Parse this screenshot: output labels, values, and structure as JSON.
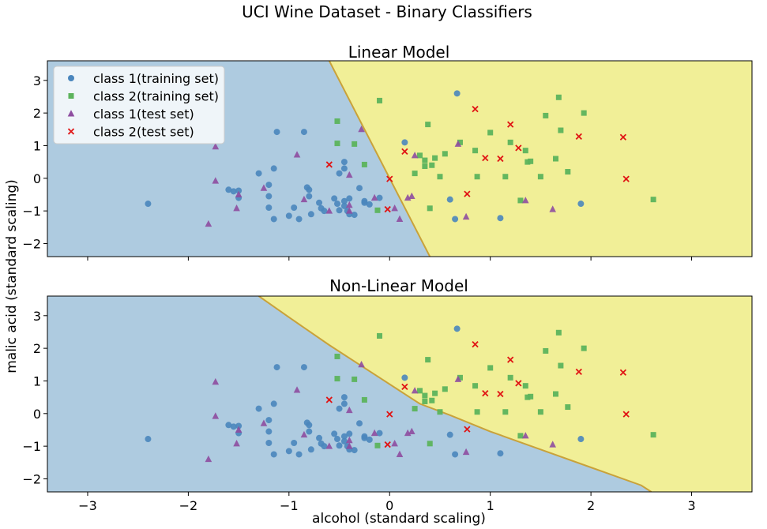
{
  "suptitle": "UCI Wine Dataset - Binary Classifiers",
  "xlabel": "alcohol (standard scaling)",
  "ylabel": "malic acid (standard scaling)",
  "colors": {
    "region_class1": "#aecbe0",
    "region_class2": "#f1ef97",
    "boundary": "#c9a23a",
    "class1_train": "#4a86bd",
    "class2_train": "#5cb35c",
    "class1_test": "#8e4da0",
    "class2_test": "#e01414"
  },
  "legend": [
    {
      "label": "class 1(training set)",
      "marker": "circle",
      "color": "#4a86bd"
    },
    {
      "label": "class 2(training set)",
      "marker": "square",
      "color": "#5cb35c"
    },
    {
      "label": "class 1(test set)",
      "marker": "triangle",
      "color": "#8e4da0"
    },
    {
      "label": "class 2(test set)",
      "marker": "x",
      "color": "#e01414"
    }
  ],
  "chart_data": [
    {
      "type": "scatter",
      "title": "Linear Model",
      "xlim": [
        -3.4,
        3.6
      ],
      "ylim": [
        -2.4,
        3.6
      ],
      "xticks": [
        -3,
        -2,
        -1,
        0,
        1,
        2,
        3
      ],
      "yticks": [
        -2,
        -1,
        0,
        1,
        2,
        3
      ],
      "xticklabels": [
        "−3",
        "−2",
        "−1",
        "0",
        "1",
        "2",
        "3"
      ],
      "yticklabels": [
        "−2",
        "−1",
        "0",
        "1",
        "2",
        "3"
      ],
      "show_xticklabels": false,
      "legend_position": "upper-left",
      "decision_boundary": [
        [
          -0.6,
          3.6
        ],
        [
          0.4,
          -2.4
        ]
      ]
    },
    {
      "type": "scatter",
      "title": "Non-Linear Model",
      "xlim": [
        -3.4,
        3.6
      ],
      "ylim": [
        -2.4,
        3.6
      ],
      "xticks": [
        -3,
        -2,
        -1,
        0,
        1,
        2,
        3
      ],
      "yticks": [
        -2,
        -1,
        0,
        1,
        2,
        3
      ],
      "xticklabels": [
        "−3",
        "−2",
        "−1",
        "0",
        "1",
        "2",
        "3"
      ],
      "yticklabels": [
        "−2",
        "−1",
        "0",
        "1",
        "2",
        "3"
      ],
      "show_xticklabels": true,
      "decision_boundary": [
        [
          -1.3,
          3.6
        ],
        [
          -1.0,
          2.95
        ],
        [
          -0.6,
          2.1
        ],
        [
          -0.3,
          1.5
        ],
        [
          -0.1,
          1.1
        ],
        [
          0.1,
          0.7
        ],
        [
          0.3,
          0.3
        ],
        [
          0.6,
          -0.05
        ],
        [
          1.0,
          -0.55
        ],
        [
          1.5,
          -1.1
        ],
        [
          2.0,
          -1.65
        ],
        [
          2.5,
          -2.2
        ],
        [
          2.6,
          -2.4
        ]
      ]
    }
  ],
  "series": {
    "class1_train": [
      [
        -2.4,
        -0.78
      ],
      [
        -1.6,
        -0.35
      ],
      [
        -1.55,
        -0.4
      ],
      [
        -1.5,
        -0.38
      ],
      [
        -1.5,
        -0.6
      ],
      [
        -1.3,
        0.15
      ],
      [
        -1.2,
        -0.2
      ],
      [
        -1.2,
        -0.55
      ],
      [
        -1.2,
        -0.9
      ],
      [
        -1.15,
        0.3
      ],
      [
        -1.15,
        -1.25
      ],
      [
        -1.12,
        1.42
      ],
      [
        -1.0,
        -1.15
      ],
      [
        -0.95,
        -0.9
      ],
      [
        -0.9,
        -1.25
      ],
      [
        -0.85,
        1.42
      ],
      [
        -0.82,
        -0.28
      ],
      [
        -0.8,
        -0.35
      ],
      [
        -0.8,
        -0.55
      ],
      [
        -0.78,
        -1.1
      ],
      [
        -0.7,
        -0.75
      ],
      [
        -0.68,
        -0.92
      ],
      [
        -0.65,
        -1.0
      ],
      [
        -0.55,
        -0.62
      ],
      [
        -0.52,
        -0.78
      ],
      [
        -0.5,
        0.15
      ],
      [
        -0.5,
        -0.98
      ],
      [
        -0.45,
        0.5
      ],
      [
        -0.45,
        0.3
      ],
      [
        -0.45,
        -0.7
      ],
      [
        -0.45,
        -0.85
      ],
      [
        -0.42,
        -1.0
      ],
      [
        -0.4,
        -0.62
      ],
      [
        -0.4,
        -1.1
      ],
      [
        -0.35,
        -1.12
      ],
      [
        -0.3,
        -0.3
      ],
      [
        -0.25,
        -0.7
      ],
      [
        -0.25,
        -0.75
      ],
      [
        -0.2,
        -0.8
      ],
      [
        -0.1,
        -0.6
      ],
      [
        0.15,
        1.1
      ],
      [
        0.6,
        -0.65
      ],
      [
        0.65,
        -1.25
      ],
      [
        0.67,
        2.6
      ],
      [
        1.1,
        -1.22
      ],
      [
        1.9,
        -0.78
      ]
    ],
    "class2_train": [
      [
        -0.52,
        1.75
      ],
      [
        -0.52,
        1.07
      ],
      [
        -0.35,
        1.05
      ],
      [
        -0.25,
        0.42
      ],
      [
        -0.12,
        -0.98
      ],
      [
        -0.1,
        2.38
      ],
      [
        0.25,
        0.15
      ],
      [
        0.3,
        0.7
      ],
      [
        0.35,
        0.37
      ],
      [
        0.35,
        0.55
      ],
      [
        0.38,
        1.65
      ],
      [
        0.4,
        -0.92
      ],
      [
        0.42,
        0.4
      ],
      [
        0.45,
        0.62
      ],
      [
        0.5,
        0.05
      ],
      [
        0.55,
        0.75
      ],
      [
        0.7,
        1.1
      ],
      [
        0.85,
        0.85
      ],
      [
        0.87,
        0.05
      ],
      [
        1.0,
        1.4
      ],
      [
        1.15,
        0.05
      ],
      [
        1.2,
        1.1
      ],
      [
        1.3,
        -0.68
      ],
      [
        1.35,
        0.85
      ],
      [
        1.37,
        0.5
      ],
      [
        1.4,
        0.52
      ],
      [
        1.5,
        0.05
      ],
      [
        1.55,
        1.92
      ],
      [
        1.65,
        0.6
      ],
      [
        1.68,
        2.48
      ],
      [
        1.7,
        1.47
      ],
      [
        1.77,
        0.2
      ],
      [
        1.93,
        2.0
      ],
      [
        2.62,
        -0.65
      ]
    ],
    "class1_test": [
      [
        -1.8,
        -1.4
      ],
      [
        -1.73,
        0.97
      ],
      [
        -1.73,
        -0.08
      ],
      [
        -1.5,
        -0.5
      ],
      [
        -1.52,
        -0.92
      ],
      [
        -1.25,
        -0.3
      ],
      [
        -0.92,
        0.72
      ],
      [
        -0.85,
        -0.65
      ],
      [
        -0.6,
        -1.0
      ],
      [
        -0.4,
        -1.0
      ],
      [
        -0.4,
        -0.82
      ],
      [
        -0.4,
        0.1
      ],
      [
        -0.28,
        1.5
      ],
      [
        -0.15,
        -0.6
      ],
      [
        0.05,
        -0.92
      ],
      [
        0.1,
        -1.25
      ],
      [
        0.18,
        -0.6
      ],
      [
        0.22,
        -0.55
      ],
      [
        0.25,
        0.7
      ],
      [
        0.68,
        1.05
      ],
      [
        0.76,
        -1.18
      ],
      [
        1.35,
        -0.68
      ],
      [
        1.62,
        -0.95
      ]
    ],
    "class2_test": [
      [
        -0.6,
        0.42
      ],
      [
        0.0,
        -0.02
      ],
      [
        -0.02,
        -0.95
      ],
      [
        0.15,
        0.82
      ],
      [
        0.85,
        2.12
      ],
      [
        0.95,
        0.62
      ],
      [
        1.1,
        0.6
      ],
      [
        1.2,
        1.65
      ],
      [
        1.28,
        0.93
      ],
      [
        1.88,
        1.28
      ],
      [
        2.32,
        1.26
      ],
      [
        2.35,
        -0.02
      ],
      [
        0.77,
        -0.48
      ]
    ]
  }
}
